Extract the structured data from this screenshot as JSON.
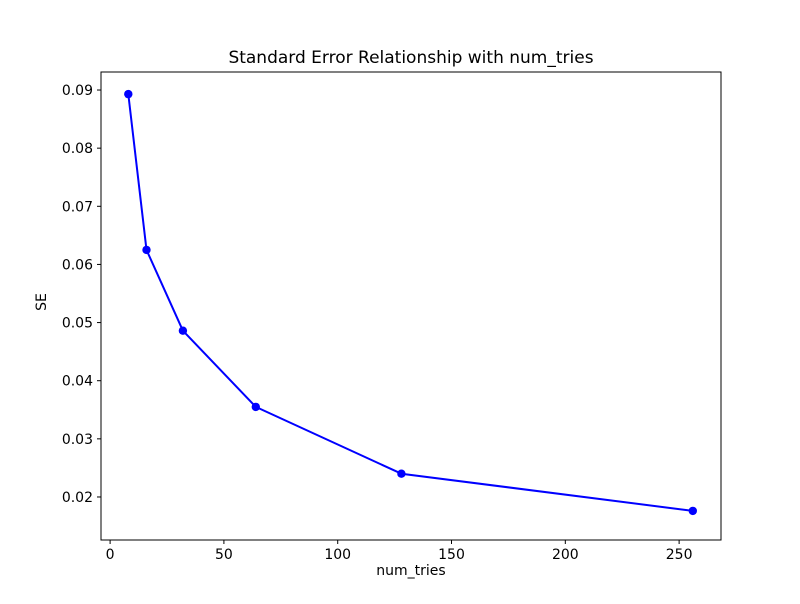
{
  "figure": {
    "background": "#ffffff",
    "frame_color": "#000000"
  },
  "chart_data": {
    "type": "line",
    "title": "Standard Error Relationship with num_tries",
    "xlabel": "num_tries",
    "ylabel": "SE",
    "x": [
      8,
      16,
      32,
      64,
      128,
      256
    ],
    "y": [
      0.0893,
      0.0625,
      0.0486,
      0.0355,
      0.024,
      0.0176
    ],
    "series": [
      {
        "name": "SE",
        "values": [
          0.0893,
          0.0625,
          0.0486,
          0.0355,
          0.024,
          0.0176
        ]
      }
    ],
    "line_color": "#0000ff",
    "marker": "circle",
    "marker_color": "#0000ff",
    "xticks": [
      0,
      50,
      100,
      150,
      200,
      250
    ],
    "xtick_labels": [
      "0",
      "50",
      "100",
      "150",
      "200",
      "250"
    ],
    "yticks": [
      0.02,
      0.03,
      0.04,
      0.05,
      0.06,
      0.07,
      0.08,
      0.09
    ],
    "ytick_labels": [
      "0.02",
      "0.03",
      "0.04",
      "0.05",
      "0.06",
      "0.07",
      "0.08",
      "0.09"
    ],
    "xlim": [
      -4.0,
      268.4
    ],
    "ylim": [
      0.0126,
      0.0931
    ],
    "grid": false,
    "legend": null
  }
}
